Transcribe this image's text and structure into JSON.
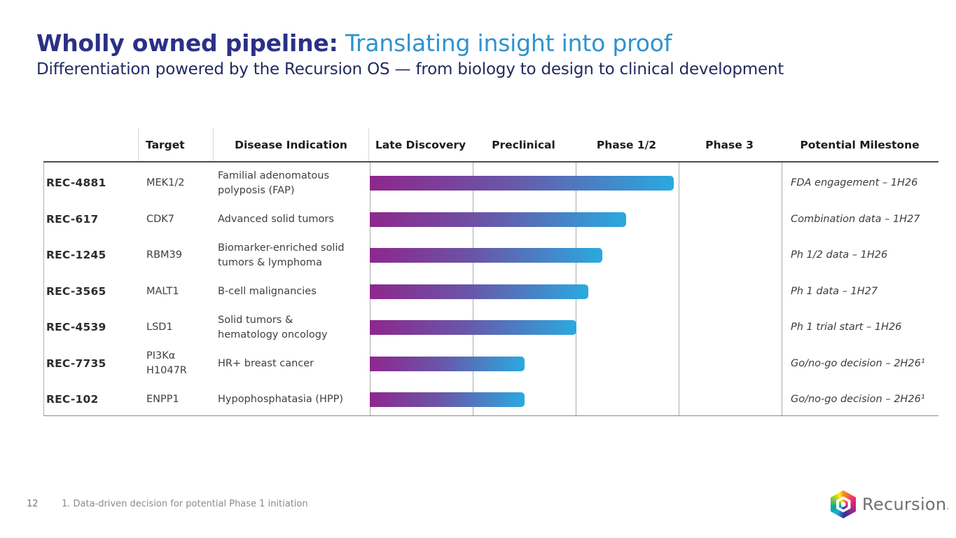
{
  "slide": {
    "title_primary": "Wholly owned pipeline:",
    "title_secondary": " Translating insight into proof",
    "subtitle": "Differentiation powered by the Recursion OS — from biology to design to clinical development"
  },
  "table": {
    "columns": {
      "target": "Target",
      "disease": "Disease Indication",
      "phases": [
        "Late Discovery",
        "Preclinical",
        "Phase 1/2",
        "Phase 3"
      ],
      "milestone": "Potential Milestone"
    },
    "rows": [
      {
        "program": "REC-4881",
        "target": "MEK1/2",
        "disease": "Familial adenomatous\npolyposis (FAP)",
        "progress_phase_units": 2.95,
        "milestone": "FDA engagement – 1H26"
      },
      {
        "program": "REC-617",
        "target": "CDK7",
        "disease": "Advanced solid tumors",
        "progress_phase_units": 2.49,
        "milestone": "Combination data – 1H27"
      },
      {
        "program": "REC-1245",
        "target": "RBM39",
        "disease": "Biomarker-enriched solid\ntumors & lymphoma",
        "progress_phase_units": 2.26,
        "milestone": "Ph 1/2 data – 1H26"
      },
      {
        "program": "REC-3565",
        "target": "MALT1",
        "disease": "B-cell malignancies",
        "progress_phase_units": 2.12,
        "milestone": "Ph 1 data – 1H27"
      },
      {
        "program": "REC-4539",
        "target": "LSD1",
        "disease": "Solid tumors &\nhematology oncology",
        "progress_phase_units": 2.01,
        "milestone": "Ph 1 trial start – 1H26"
      },
      {
        "program": "REC-7735",
        "target": "PI3Kα\nH1047R",
        "disease": "HR+ breast cancer",
        "progress_phase_units": 1.5,
        "milestone": "Go/no-go decision – 2H26¹"
      },
      {
        "program": "REC-102",
        "target": "ENPP1",
        "disease": "Hypophosphatasia (HPP)",
        "progress_phase_units": 1.5,
        "milestone": "Go/no-go decision – 2H26¹"
      }
    ]
  },
  "chart_data": {
    "type": "bar",
    "orientation": "horizontal",
    "title": "Wholly owned pipeline: Translating insight into proof",
    "categories": [
      "REC-4881",
      "REC-617",
      "REC-1245",
      "REC-3565",
      "REC-4539",
      "REC-7735",
      "REC-102"
    ],
    "values": [
      2.95,
      2.49,
      2.26,
      2.12,
      2.01,
      1.5,
      1.5
    ],
    "x_axis_phases": [
      "Late Discovery",
      "Preclinical",
      "Phase 1/2",
      "Phase 3"
    ],
    "xlim": [
      0,
      4
    ],
    "grid": true,
    "bar_gradient": [
      "#92278f",
      "#29abe2"
    ]
  },
  "footer": {
    "page_number": "12",
    "footnote": "1. Data-driven decision for potential Phase 1 initiation",
    "brand": "Recursion",
    "brand_mark": "."
  },
  "colors": {
    "title_navy": "#2b3087",
    "title_blue": "#2e93cc",
    "bar_start_purple": "#92278f",
    "bar_end_blue": "#29abe2"
  }
}
